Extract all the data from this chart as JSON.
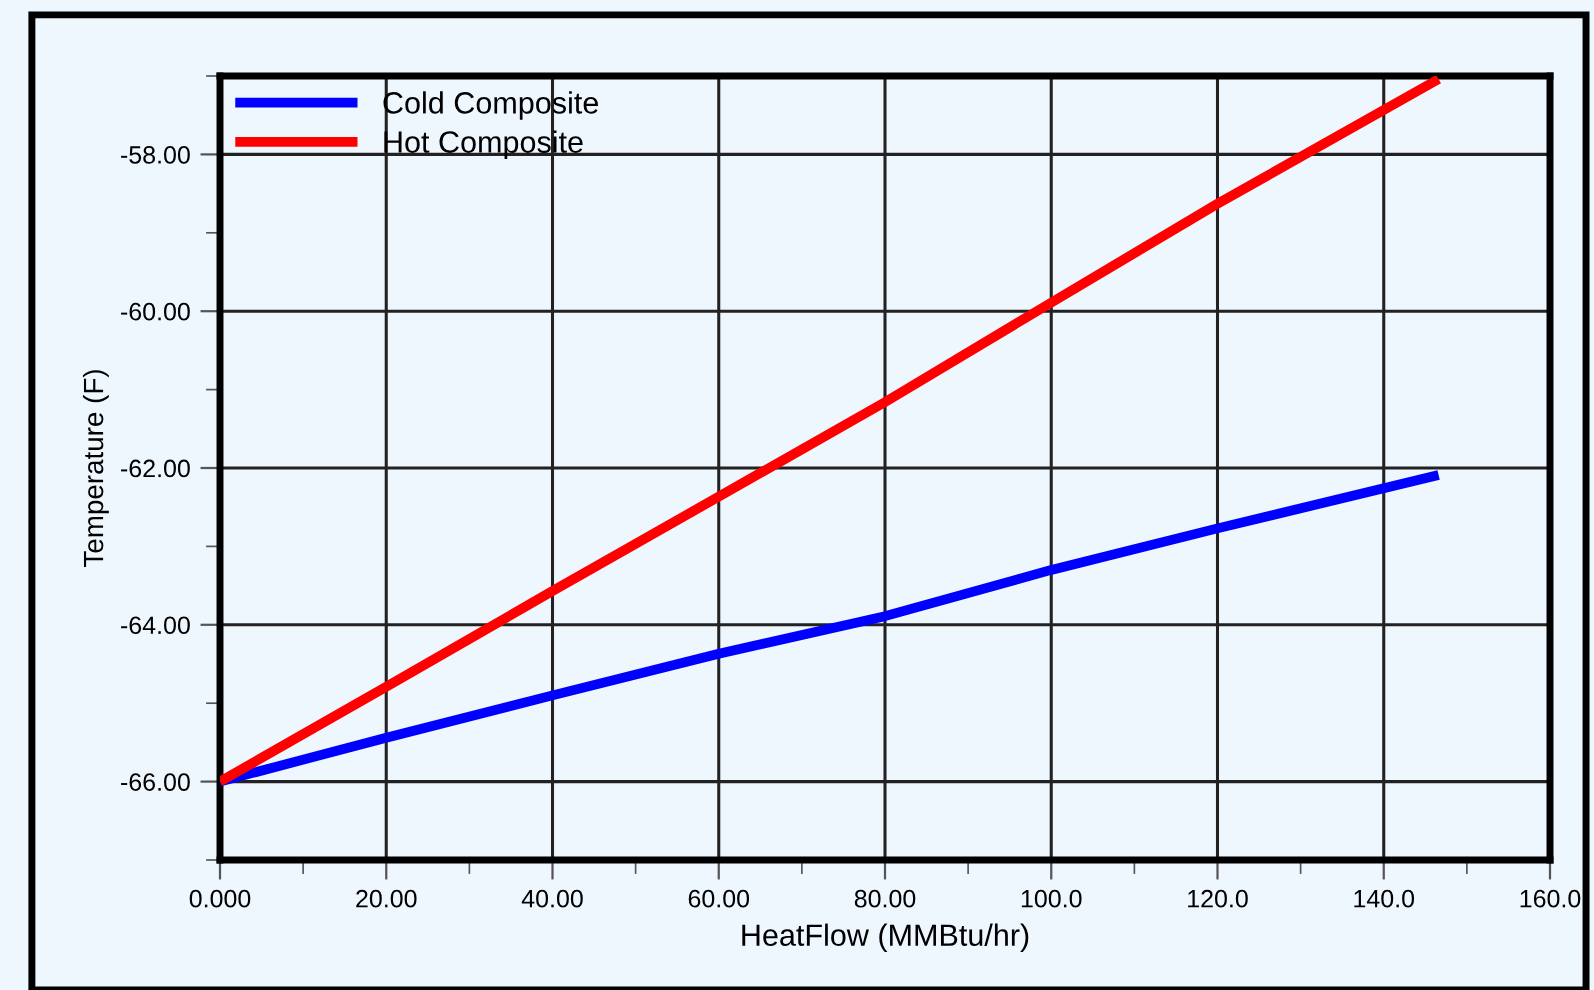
{
  "chart_data": {
    "type": "line",
    "xlabel": "HeatFlow (MMBtu/hr)",
    "ylabel": "Temperature (F)",
    "series": [
      {
        "name": "Cold Composite",
        "color": "#0000ff",
        "x": [
          0,
          20,
          40,
          60,
          80,
          100,
          120,
          146.6
        ],
        "values": [
          -66.0,
          -65.44,
          -64.9,
          -64.37,
          -63.89,
          -63.3,
          -62.77,
          -62.09
        ]
      },
      {
        "name": "Hot Composite",
        "color": "#ff0000",
        "x": [
          0,
          20,
          40,
          80,
          100,
          120,
          146.6
        ],
        "values": [
          -66.0,
          -64.79,
          -63.57,
          -61.16,
          -59.89,
          -58.63,
          -57.04
        ]
      }
    ],
    "xlim": [
      0,
      160
    ],
    "ylim": [
      -67,
      -57
    ],
    "xticks": [
      {
        "value": 0,
        "label": "0.000"
      },
      {
        "value": 20,
        "label": "20.00"
      },
      {
        "value": 40,
        "label": "40.00"
      },
      {
        "value": 60,
        "label": "60.00"
      },
      {
        "value": 80,
        "label": "80.00"
      },
      {
        "value": 100,
        "label": "100.0"
      },
      {
        "value": 120,
        "label": "120.0"
      },
      {
        "value": 140,
        "label": "140.0"
      },
      {
        "value": 160,
        "label": "160.0"
      }
    ],
    "yticks": [
      {
        "value": -66,
        "label": "-66.00"
      },
      {
        "value": -64,
        "label": "-64.00"
      },
      {
        "value": -62,
        "label": "-62.00"
      },
      {
        "value": -60,
        "label": "-60.00"
      },
      {
        "value": -58,
        "label": "-58.00"
      }
    ],
    "grid": true,
    "legend": "top left",
    "marker": "none",
    "line_style": "solid"
  }
}
